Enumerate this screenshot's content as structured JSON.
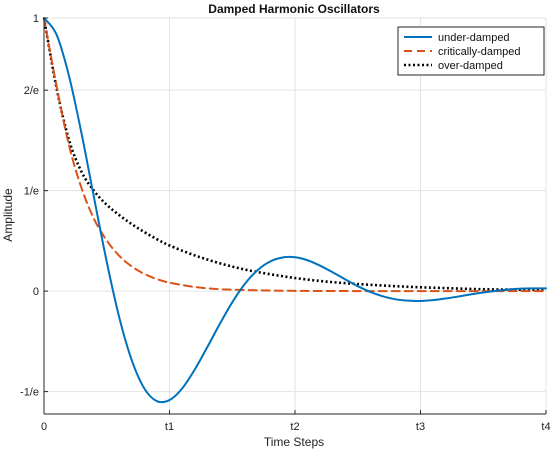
{
  "chart_data": {
    "type": "line",
    "title": "Damped Harmonic Oscillators",
    "xlabel": "Time Steps",
    "ylabel": "Amplitude",
    "xlim": [
      0,
      4
    ],
    "ylim": [
      -0.45,
      1.0
    ],
    "x_ticks": [
      {
        "value": 0,
        "label": "0"
      },
      {
        "value": 1,
        "label": "t1"
      },
      {
        "value": 2,
        "label": "t2"
      },
      {
        "value": 3,
        "label": "t3"
      },
      {
        "value": 4,
        "label": "t4"
      }
    ],
    "y_ticks": [
      {
        "value": 1.0,
        "label": "1"
      },
      {
        "value": 0.7358,
        "label": "2/e"
      },
      {
        "value": 0.3679,
        "label": "1/e"
      },
      {
        "value": 0.0,
        "label": "0"
      },
      {
        "value": -0.3679,
        "label": "-1/e"
      }
    ],
    "grid": true,
    "legend_position": "top-right",
    "series": [
      {
        "name": "under-damped",
        "color": "#0072BD",
        "dash": "solid",
        "x": [
          0,
          0.1,
          0.2,
          0.3,
          0.4,
          0.5,
          0.6,
          0.7,
          0.8,
          0.9,
          1.0,
          1.1,
          1.2,
          1.3,
          1.4,
          1.5,
          1.6,
          1.7,
          1.8,
          1.9,
          2.0,
          2.1,
          2.2,
          2.3,
          2.4,
          2.5,
          2.6,
          2.7,
          2.8,
          2.9,
          3.0,
          3.1,
          3.2,
          3.3,
          3.4,
          3.5,
          3.6,
          3.7,
          3.8,
          3.9,
          4.0
        ],
        "values": [
          1.0,
          0.939,
          0.786,
          0.575,
          0.339,
          0.107,
          -0.097,
          -0.254,
          -0.357,
          -0.403,
          -0.399,
          -0.357,
          -0.288,
          -0.206,
          -0.121,
          -0.041,
          0.026,
          0.076,
          0.108,
          0.123,
          0.124,
          0.113,
          0.093,
          0.069,
          0.043,
          0.018,
          -0.003,
          -0.019,
          -0.03,
          -0.035,
          -0.036,
          -0.033,
          -0.027,
          -0.02,
          -0.012,
          -0.005,
          0.001,
          0.006,
          0.009,
          0.01,
          0.01
        ]
      },
      {
        "name": "critically-damped",
        "color": "#D95319",
        "dash": "dashed",
        "x": [
          0,
          0.1,
          0.2,
          0.3,
          0.4,
          0.5,
          0.6,
          0.7,
          0.8,
          0.9,
          1.0,
          1.2,
          1.4,
          1.6,
          1.8,
          2.0,
          2.2,
          2.4,
          2.6,
          2.8,
          3.0,
          3.2,
          3.4,
          3.6,
          3.8,
          4.0
        ],
        "values": [
          1.0,
          0.751,
          0.532,
          0.376,
          0.263,
          0.185,
          0.129,
          0.09,
          0.063,
          0.044,
          0.031,
          0.015,
          0.007,
          0.004,
          0.002,
          0.001,
          0.0005,
          0.0002,
          0.0001,
          0.0,
          0.0,
          0.0,
          0.0,
          0.0,
          0.0,
          0.0
        ]
      },
      {
        "name": "over-damped",
        "color": "#000000",
        "dash": "dotted",
        "x": [
          0,
          0.1,
          0.2,
          0.3,
          0.4,
          0.5,
          0.6,
          0.7,
          0.8,
          0.9,
          1.0,
          1.2,
          1.4,
          1.6,
          1.8,
          2.0,
          2.2,
          2.4,
          2.6,
          2.8,
          3.0,
          3.2,
          3.4,
          3.6,
          3.8,
          4.0
        ],
        "values": [
          1.0,
          0.744,
          0.552,
          0.436,
          0.366,
          0.316,
          0.278,
          0.245,
          0.216,
          0.19,
          0.167,
          0.131,
          0.102,
          0.079,
          0.062,
          0.048,
          0.037,
          0.029,
          0.023,
          0.018,
          0.014,
          0.011,
          0.008,
          0.006,
          0.005,
          0.004
        ]
      }
    ]
  }
}
